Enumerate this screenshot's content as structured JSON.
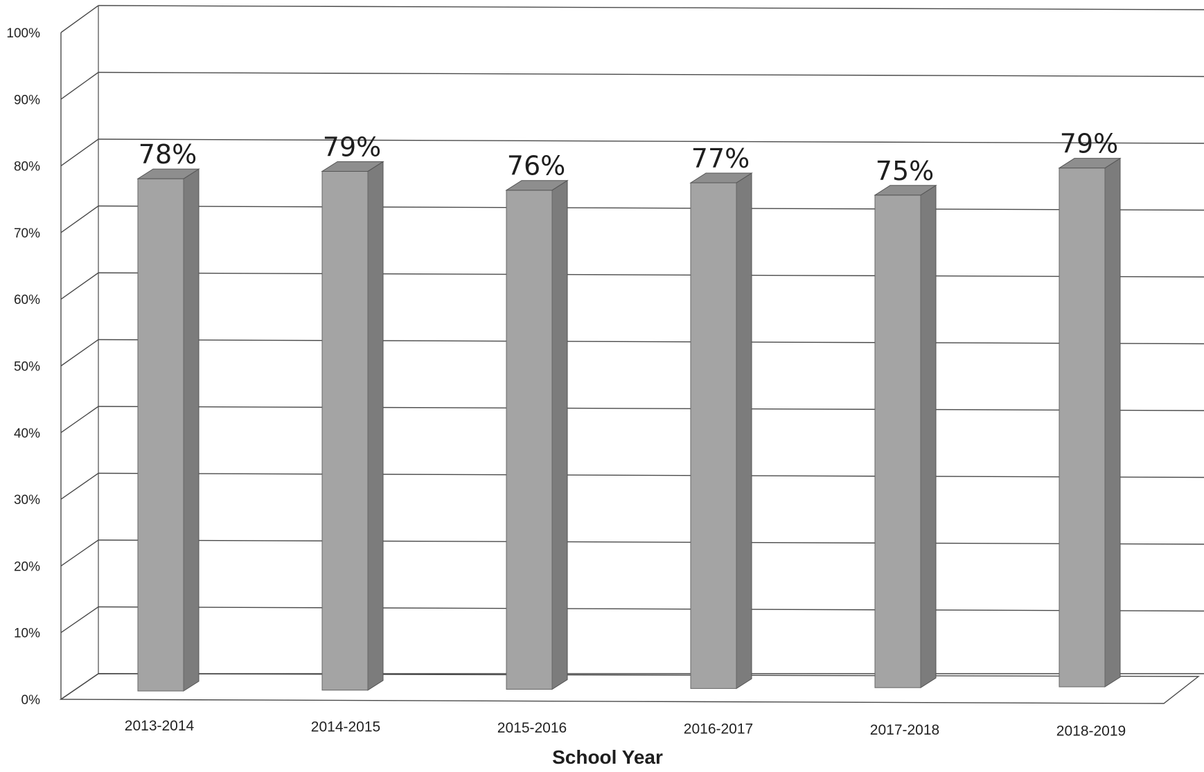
{
  "chart_data": {
    "type": "bar",
    "categories": [
      "2013-2014",
      "2014-2015",
      "2015-2016",
      "2016-2017",
      "2017-2018",
      "2018-2019"
    ],
    "values": [
      78,
      79,
      76,
      77,
      75,
      79
    ],
    "data_labels": [
      "78%",
      "79%",
      "76%",
      "77%",
      "75%",
      "79%"
    ],
    "yticks": [
      "0%",
      "10%",
      "20%",
      "30%",
      "40%",
      "50%",
      "60%",
      "70%",
      "80%",
      "90%",
      "100%"
    ],
    "ylim": [
      0,
      100
    ],
    "xlabel": "School Year",
    "ylabel": "",
    "title": "",
    "grid": true,
    "bar_style": "3d",
    "colors": {
      "bar_front": "#a4a4a4",
      "bar_side": "#7c7c7c",
      "bar_top": "#8e8e8e",
      "grid": "#4a4a4a"
    }
  }
}
